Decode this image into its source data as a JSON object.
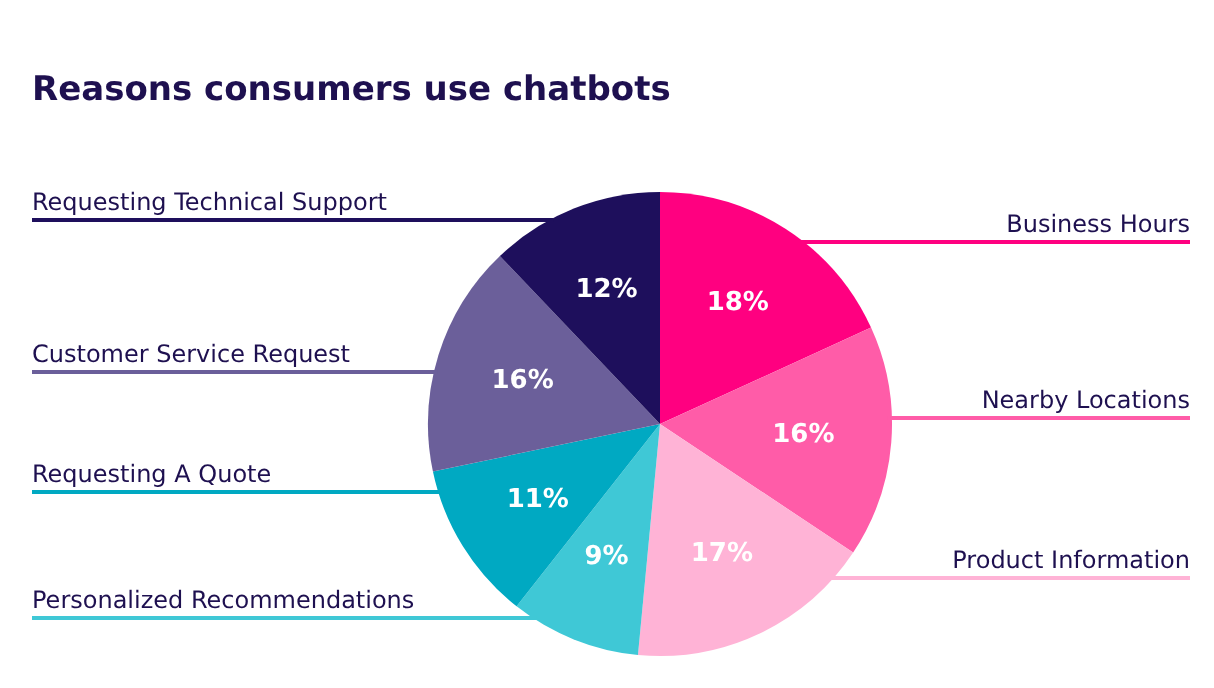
{
  "chart_data": {
    "type": "pie",
    "title": "Reasons consumers use chatbots",
    "categories": [
      "Business Hours",
      "Nearby Locations",
      "Product Information",
      "Personalized Recommendations",
      "Requesting A Quote",
      "Customer Service Request",
      "Requesting Technical Support"
    ],
    "values": [
      18,
      16,
      17,
      9,
      11,
      16,
      12
    ],
    "colors": [
      "#ff0080",
      "#ff5ca8",
      "#ffb3d6",
      "#3fc8d6",
      "#00a9c2",
      "#6b5f9a",
      "#1e0f5c"
    ],
    "value_labels": [
      "18%",
      "16%",
      "17%",
      "9%",
      "11%",
      "16%",
      "12%"
    ],
    "legend": false
  }
}
